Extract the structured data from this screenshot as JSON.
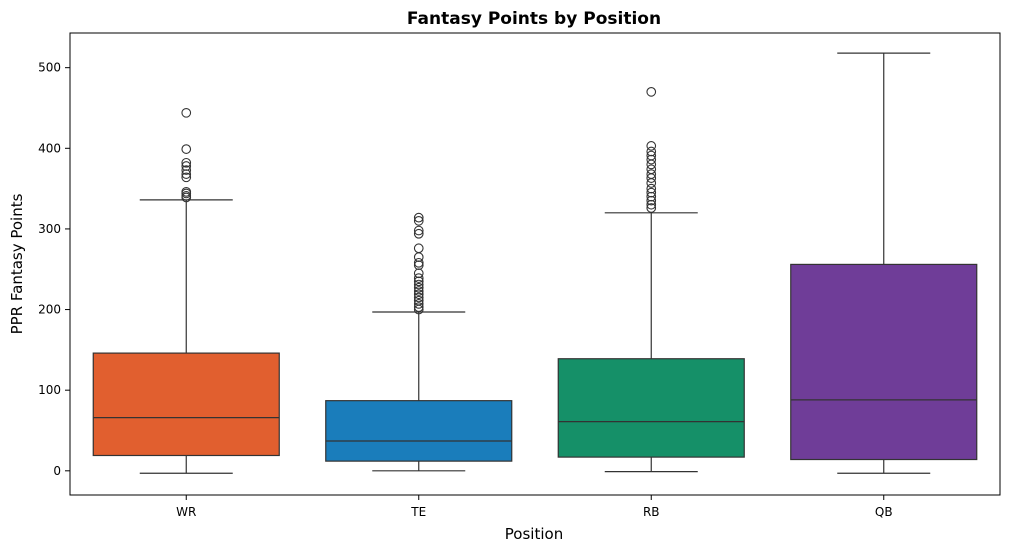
{
  "chart_data": {
    "type": "box",
    "title": "Fantasy Points by Position",
    "xlabel": "Position",
    "ylabel": "PPR Fantasy Points",
    "ylim": [
      -30,
      543
    ],
    "yticks": [
      0,
      100,
      200,
      300,
      400,
      500
    ],
    "grid": false,
    "categories": [
      "WR",
      "TE",
      "RB",
      "QB"
    ],
    "boxes": [
      {
        "name": "WR",
        "color": "#e15f2f",
        "whisker_low": -3,
        "q1": 19,
        "median": 66,
        "q3": 146,
        "whisker_high": 336,
        "outliers": [
          339,
          341,
          344,
          346,
          364,
          368,
          373,
          378,
          382,
          399,
          444
        ]
      },
      {
        "name": "TE",
        "color": "#1a7dbb",
        "whisker_low": 0,
        "q1": 12,
        "median": 37,
        "q3": 87,
        "whisker_high": 197,
        "outliers": [
          200,
          203,
          207,
          211,
          215,
          219,
          223,
          227,
          231,
          235,
          239,
          245,
          255,
          258,
          265,
          276,
          294,
          298,
          310,
          314
        ]
      },
      {
        "name": "RB",
        "color": "#159068",
        "whisker_low": -1,
        "q1": 17,
        "median": 61,
        "q3": 139,
        "whisker_high": 320,
        "outliers": [
          326,
          330,
          335,
          340,
          345,
          350,
          357,
          363,
          368,
          374,
          380,
          386,
          391,
          396,
          403,
          470
        ]
      },
      {
        "name": "QB",
        "color": "#6f3d98",
        "whisker_low": -3,
        "q1": 14,
        "median": 88,
        "q3": 256,
        "whisker_high": 518,
        "outliers": []
      }
    ]
  }
}
